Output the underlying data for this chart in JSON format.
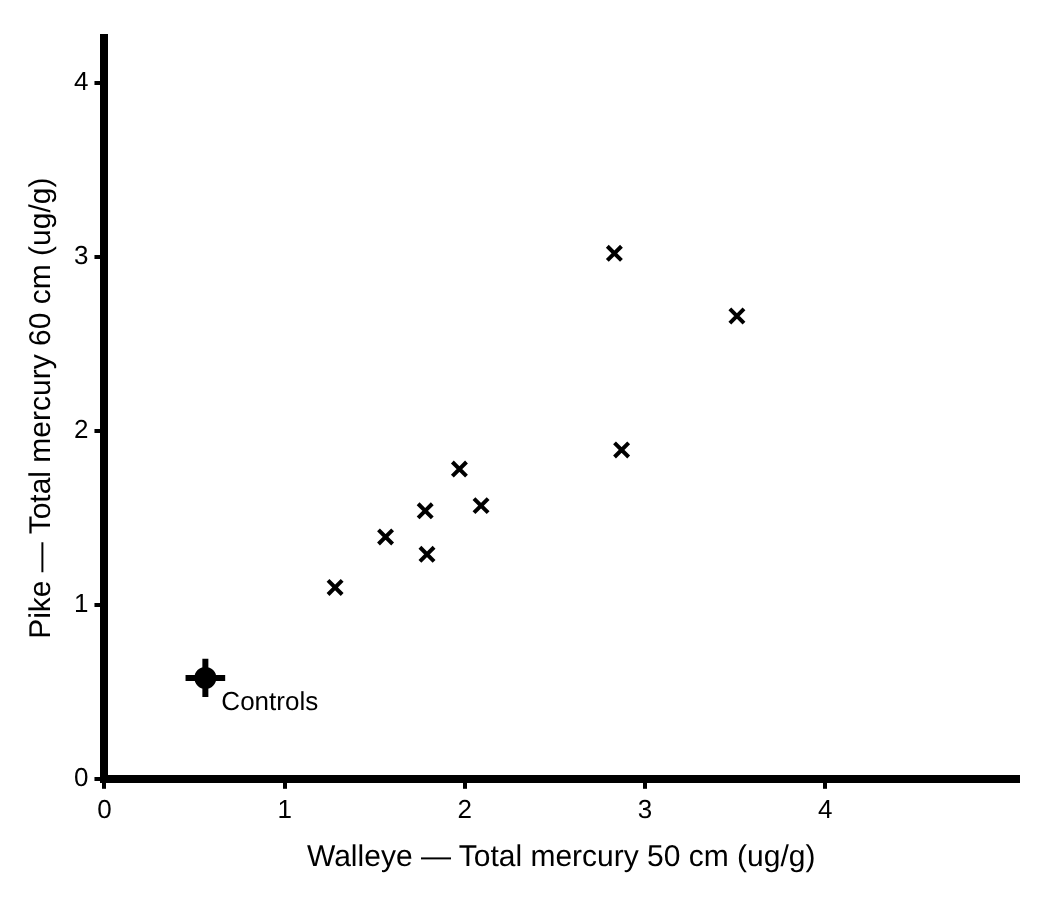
{
  "chart_data": {
    "type": "scatter",
    "xlabel": "Walleye — Total mercury 50 cm (ug/g)",
    "ylabel": "Pike — Total mercury 60 cm (ug/g)",
    "xlim": [
      0,
      5.07
    ],
    "ylim": [
      0,
      4.26
    ],
    "xticks": [
      0,
      1,
      2,
      3,
      4
    ],
    "yticks": [
      0,
      1,
      2,
      3,
      4
    ],
    "grid": false,
    "legend": false,
    "marker": "cross",
    "series": [
      {
        "color": "#000000",
        "x": [
          1.28,
          1.56,
          1.78,
          1.79,
          1.97,
          2.09,
          2.83,
          2.87,
          3.51
        ],
        "values": [
          1.1,
          1.39,
          1.54,
          1.29,
          1.78,
          1.57,
          3.02,
          1.89,
          2.66
        ]
      },
      {
        "name": "Controls",
        "color": "#000000",
        "marker": "circle",
        "x": [
          0.56
        ],
        "values": [
          0.58
        ],
        "errors": [
          0.11
        ],
        "xerrors": [
          0.11
        ]
      }
    ]
  }
}
